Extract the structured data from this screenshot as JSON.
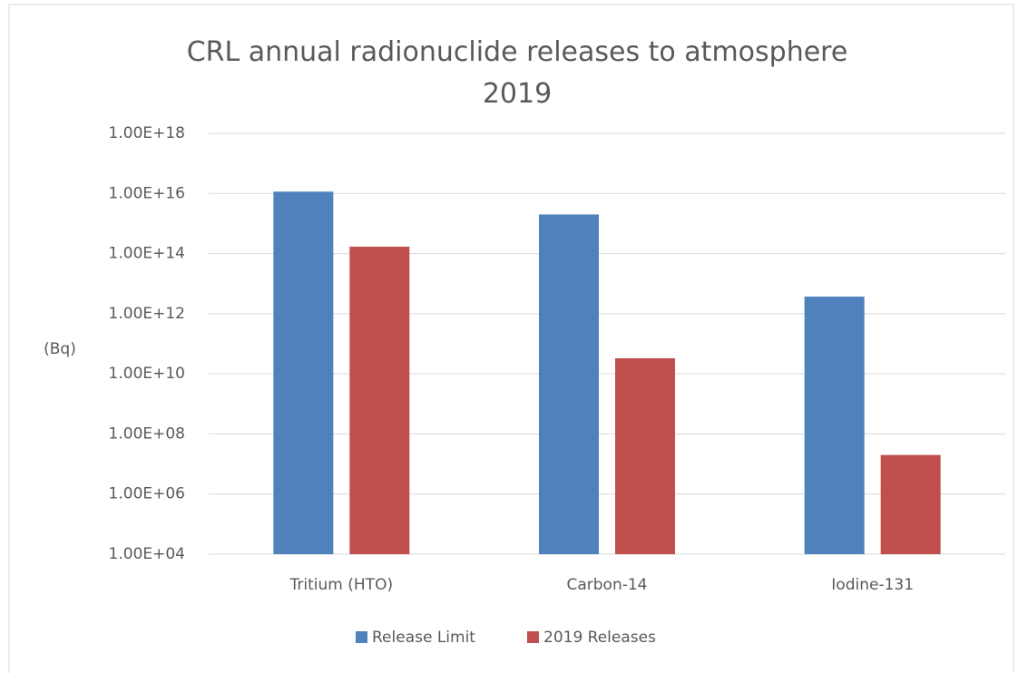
{
  "chart_data": {
    "type": "bar",
    "title": "CRL annual radionuclide releases to atmosphere 2019",
    "y_label": "(Bq)",
    "categories": [
      "Tritium (HTO)",
      "Carbon-14",
      "Iodine-131"
    ],
    "series": [
      {
        "name": "Release Limit",
        "color": "#4f81bd",
        "values": [
          1.15e+16,
          2000000000000000.0,
          3700000000000.0
        ]
      },
      {
        "name": "2019 Releases",
        "color": "#c0504d",
        "values": [
          170000000000000.0,
          33000000000.0,
          20000000.0
        ]
      }
    ],
    "ylim": [
      10000.0,
      1e+18
    ],
    "yticks": [
      {
        "value": 10000.0,
        "label": "1.00E+04"
      },
      {
        "value": 1000000.0,
        "label": "1.00E+06"
      },
      {
        "value": 100000000.0,
        "label": "1.00E+08"
      },
      {
        "value": 10000000000.0,
        "label": "1.00E+10"
      },
      {
        "value": 1000000000000.0,
        "label": "1.00E+12"
      },
      {
        "value": 100000000000000.0,
        "label": "1.00E+14"
      },
      {
        "value": 1e+16,
        "label": "1.00E+16"
      },
      {
        "value": 1e+18,
        "label": "1.00E+18"
      }
    ],
    "log_scale": true,
    "grid": true,
    "legend": "bottom"
  }
}
